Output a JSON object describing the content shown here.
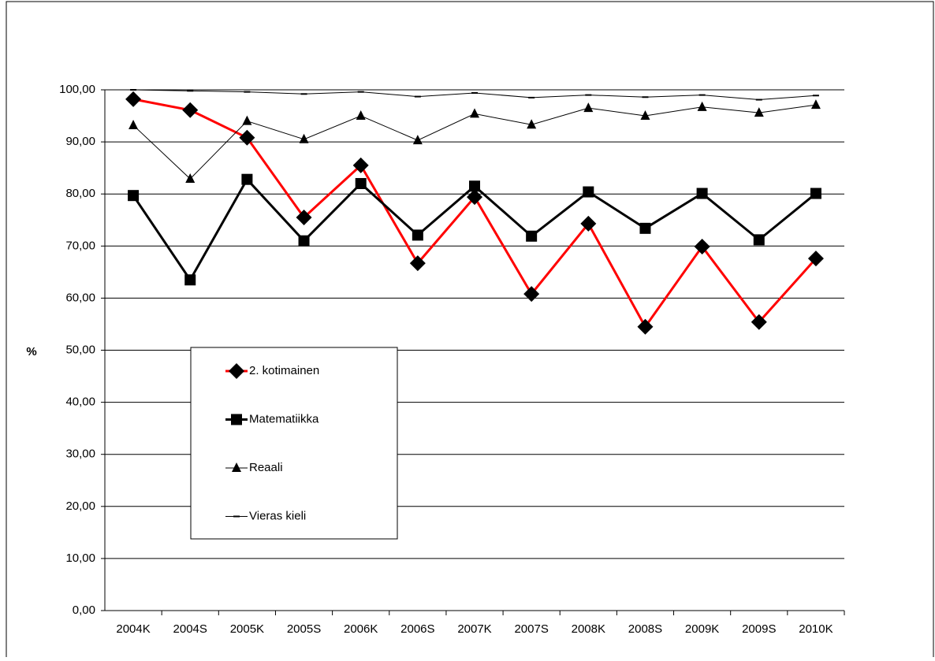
{
  "chart_data": {
    "type": "line",
    "y_label": "%",
    "categories": [
      "2004K",
      "2004S",
      "2005K",
      "2005S",
      "2006K",
      "2006S",
      "2007K",
      "2007S",
      "2008K",
      "2008S",
      "2009K",
      "2009S",
      "2010K"
    ],
    "series": [
      {
        "name": "2. kotimainen",
        "color": "#ff0000",
        "marker": "diamond",
        "marker_color": "#000000",
        "values": [
          98.2,
          96.1,
          90.8,
          75.5,
          85.5,
          66.7,
          79.4,
          60.8,
          74.3,
          54.5,
          69.9,
          55.4,
          67.6
        ]
      },
      {
        "name": "Matematiikka",
        "color": "#000000",
        "marker": "square",
        "marker_color": "#000000",
        "values": [
          79.7,
          63.5,
          82.8,
          71.0,
          82.0,
          72.1,
          81.5,
          71.9,
          80.4,
          73.4,
          80.1,
          71.2,
          80.1
        ]
      },
      {
        "name": "Reaali",
        "color": "#000000",
        "marker": "triangle",
        "marker_color": "#000000",
        "values": [
          93.2,
          82.9,
          94.0,
          90.5,
          95.0,
          90.3,
          95.4,
          93.3,
          96.5,
          95.0,
          96.7,
          95.6,
          97.1
        ]
      },
      {
        "name": "Vieras kieli",
        "color": "#000000",
        "marker": "dash",
        "marker_color": "#000000",
        "values": [
          100.0,
          99.8,
          99.6,
          99.2,
          99.6,
          98.7,
          99.4,
          98.5,
          99.0,
          98.6,
          99.0,
          98.1,
          98.9
        ]
      }
    ],
    "ylim": [
      0,
      100
    ],
    "yticks": [
      {
        "value": 0,
        "label": "0,00"
      },
      {
        "value": 10,
        "label": "10,00"
      },
      {
        "value": 20,
        "label": "20,00"
      },
      {
        "value": 30,
        "label": "30,00"
      },
      {
        "value": 40,
        "label": "40,00"
      },
      {
        "value": 50,
        "label": "50,00"
      },
      {
        "value": 60,
        "label": "60,00"
      },
      {
        "value": 70,
        "label": "70,00"
      },
      {
        "value": 80,
        "label": "80,00"
      },
      {
        "value": 90,
        "label": "90,00"
      },
      {
        "value": 100,
        "label": "100,00"
      }
    ],
    "grid": true,
    "legend": "lower left"
  }
}
